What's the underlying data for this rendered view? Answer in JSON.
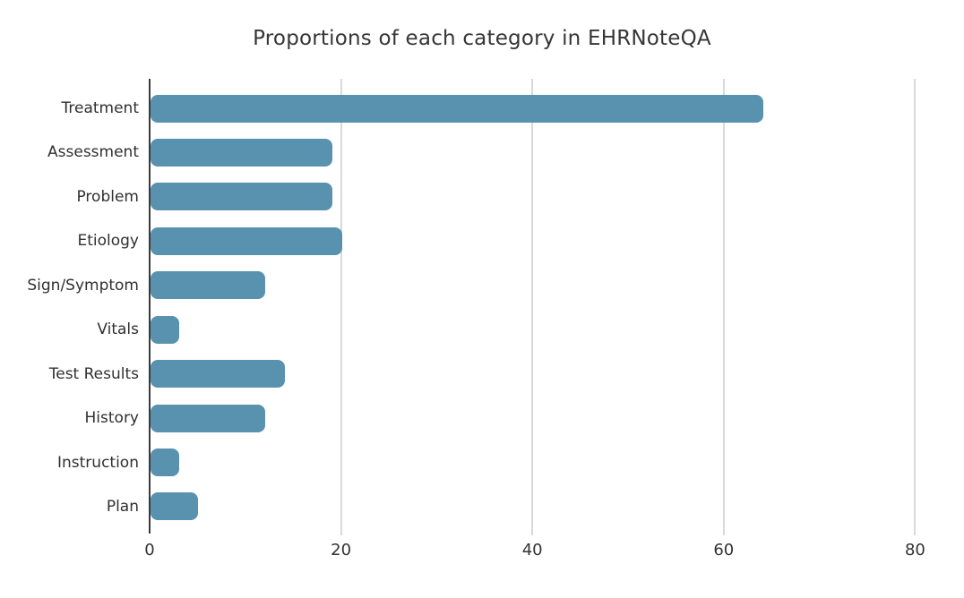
{
  "chart_data": {
    "type": "bar",
    "orientation": "horizontal",
    "title": "Proportions of each category in EHRNoteQA",
    "categories": [
      "Treatment",
      "Assessment",
      "Problem",
      "Etiology",
      "Sign/Symptom",
      "Vitals",
      "Test Results",
      "History",
      "Instruction",
      "Plan"
    ],
    "values": [
      64,
      19,
      19,
      20,
      12,
      3,
      14,
      12,
      3,
      5
    ],
    "xlabel": "",
    "ylabel": "",
    "x_ticks": [
      0,
      20,
      40,
      60,
      80
    ],
    "xlim": [
      0,
      84
    ],
    "grid": "vertical-gridlines-on",
    "legend": "none"
  },
  "colors": {
    "bar": "#5992ae",
    "gridline": "#d9d9d9",
    "axis_line": "#3a3a3a",
    "title_text": "#363636",
    "label_text": "#303030",
    "background": "#ffffff"
  }
}
